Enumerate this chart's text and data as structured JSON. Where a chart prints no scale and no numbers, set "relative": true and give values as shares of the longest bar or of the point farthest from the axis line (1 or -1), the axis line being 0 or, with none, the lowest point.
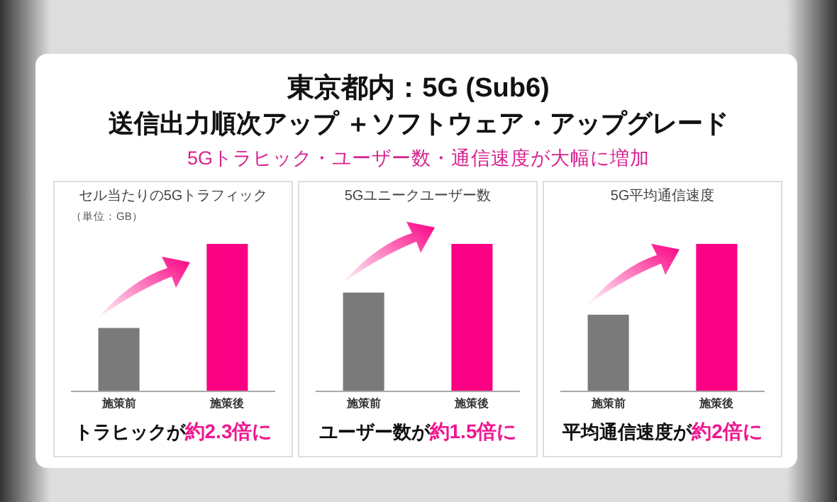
{
  "chart_data": [
    {
      "type": "other",
      "title": "東京都内：5G (Sub6)",
      "subtitle": "送信出力順次アップ ＋ソフトウェア・アップグレード",
      "annotations": [
        "5Gトラヒック・ユーザー数・通信速度が大幅に増加"
      ]
    },
    {
      "type": "bar",
      "title": "セル当たりの5Gトラフィック",
      "subtitle": "（単位：GB）",
      "categories": [
        "施策前",
        "施策後"
      ],
      "values": [
        0.43,
        1
      ],
      "colors": [
        "#7a7a7a",
        "#fa0082"
      ],
      "relative": true,
      "annotations": [
        "トラヒックが",
        "約2.3倍に"
      ]
    },
    {
      "type": "bar",
      "title": "5Gユニークユーザー数",
      "categories": [
        "施策前",
        "施策後"
      ],
      "values": [
        0.67,
        1
      ],
      "colors": [
        "#7a7a7a",
        "#fa0082"
      ],
      "relative": true,
      "annotations": [
        "ユーザー数が",
        "約1.5倍に"
      ]
    },
    {
      "type": "bar",
      "title": "5G平均通信速度",
      "categories": [
        "施策前",
        "施策後"
      ],
      "values": [
        0.52,
        1
      ],
      "colors": [
        "#7a7a7a",
        "#fa0082"
      ],
      "relative": true,
      "annotations": [
        "平均通信速度が",
        "約2倍に"
      ]
    }
  ]
}
